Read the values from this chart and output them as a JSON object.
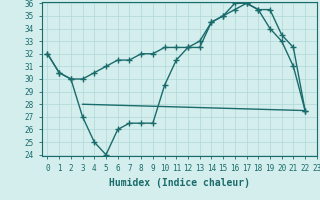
{
  "line1_x": [
    0,
    1,
    2,
    3,
    4,
    5,
    6,
    7,
    8,
    9,
    10,
    11,
    12,
    13,
    14,
    15,
    16,
    17,
    18,
    19,
    20,
    21,
    22
  ],
  "line1_y": [
    32,
    30.5,
    30,
    27,
    25,
    24,
    26,
    26.5,
    26.5,
    26.5,
    29.5,
    31.5,
    32.5,
    32.5,
    34.5,
    35,
    36,
    36,
    35.5,
    34,
    33,
    31,
    27.5
  ],
  "line2_x": [
    0,
    1,
    2,
    3,
    4,
    5,
    6,
    7,
    8,
    9,
    10,
    11,
    12,
    13,
    14,
    15,
    16,
    17,
    18,
    19,
    20,
    21,
    22
  ],
  "line2_y": [
    32,
    30.5,
    30,
    30,
    30.5,
    31,
    31.5,
    31.5,
    32,
    32,
    32.5,
    32.5,
    32.5,
    33,
    34.5,
    35,
    35.5,
    36,
    35.5,
    35.5,
    33.5,
    32.5,
    27.5
  ],
  "line3_x": [
    3,
    22
  ],
  "line3_y": [
    28,
    27.5
  ],
  "color": "#1a6b6b",
  "bg_color": "#d4eeed",
  "xlabel": "Humidex (Indice chaleur)",
  "ylim": [
    24,
    36
  ],
  "xlim": [
    -0.5,
    23
  ],
  "yticks": [
    24,
    25,
    26,
    27,
    28,
    29,
    30,
    31,
    32,
    33,
    34,
    35,
    36
  ],
  "xticks": [
    0,
    1,
    2,
    3,
    4,
    5,
    6,
    7,
    8,
    9,
    10,
    11,
    12,
    13,
    14,
    15,
    16,
    17,
    18,
    19,
    20,
    21,
    22,
    23
  ],
  "marker": "+",
  "markersize": 4,
  "linewidth": 1.0,
  "xlabel_fontsize": 7,
  "tick_fontsize": 5.5,
  "grid_color": "#b0d8d8"
}
